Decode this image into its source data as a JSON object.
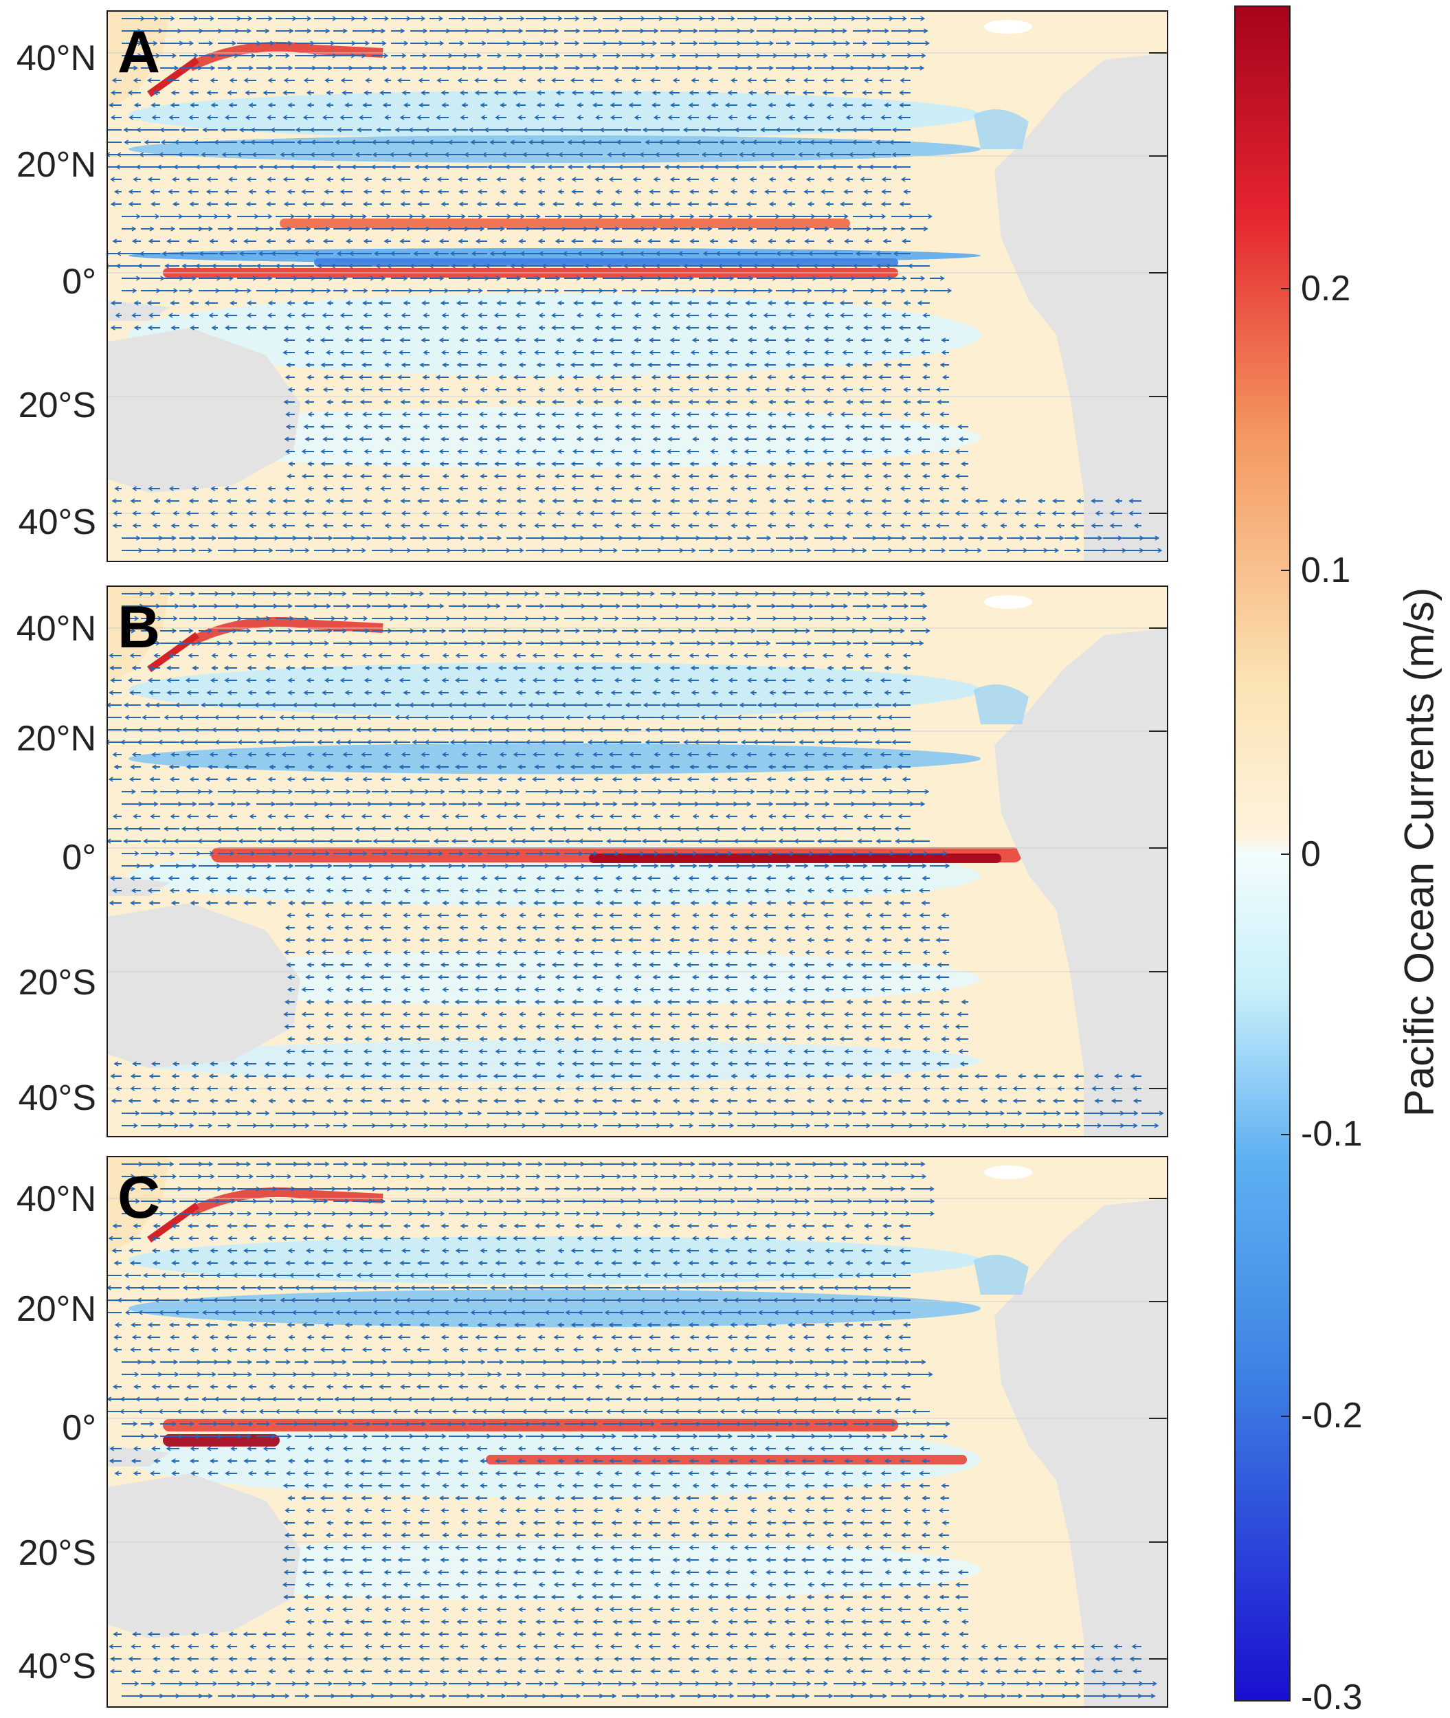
{
  "panels": [
    {
      "letter": "A",
      "variant": "A"
    },
    {
      "letter": "B",
      "variant": "B"
    },
    {
      "letter": "C",
      "variant": "C"
    }
  ],
  "lat_labels": [
    "40°N",
    "20°N",
    "0°",
    "20°S",
    "40°S"
  ],
  "colorbar": {
    "label": "Pacific Ocean Currents (m/s)",
    "ticks": [
      "0.2",
      "0.1",
      "0",
      "-0.1",
      "-0.2",
      "-0.3"
    ],
    "min": -0.3,
    "max": 0.28,
    "colors": {
      "neg_max": "#1a0fd0",
      "neg_mid": "#5fb0f2",
      "zero": "#f2fcfc",
      "pos_low": "#fbe3b4",
      "pos_mid": "#f4965e",
      "pos_max": "#a5041c"
    }
  },
  "map_colors": {
    "land": "#e3e3e3",
    "ocean_base": "#fdf0d2",
    "arrow": "#2468b4"
  }
}
